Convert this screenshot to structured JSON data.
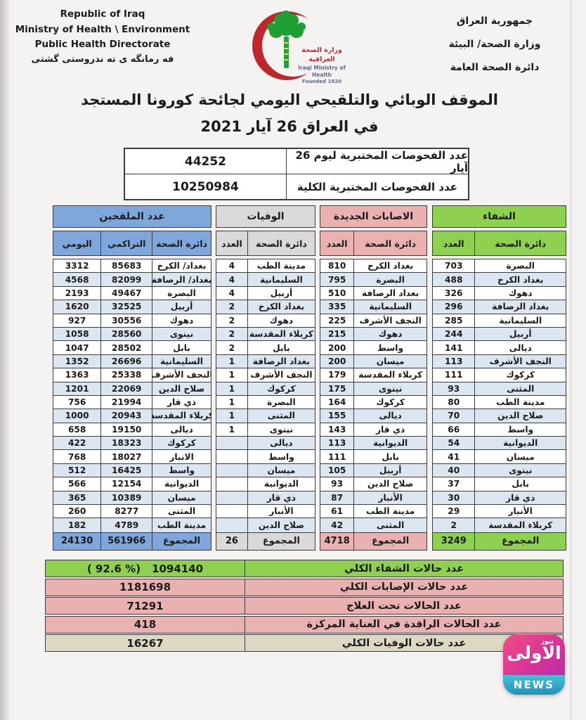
{
  "colors": {
    "vaccinated_header": "#7FA7DC",
    "deaths_header": "#D9D9D9",
    "infections_header": "#E9B1B0",
    "recovery_header": "#8ED050",
    "row_stripe": "#DCE6F1",
    "summary_green": "#8ED050",
    "summary_pink": "#E9B1B0",
    "summary_tan": "#DDD8C3",
    "crescent_red": "#C0272D",
    "tree_green": "#1F9E33",
    "news_magenta": "#D6309B",
    "news_teal": "#2FA8C5"
  },
  "header": {
    "left_lines": [
      "Republic of Iraq",
      "Ministry of Health \\ Environment",
      "Public Health Directorate",
      "فه رمانگه ى ته ندروستى گشتى"
    ],
    "right_lines": [
      "جمهورية العراق",
      "وزارة الصحة/ البيئة",
      "دائرة الصحة العامة"
    ],
    "logo": {
      "arabic": "وزارة الصحة العراقية",
      "english": "Iraqi Ministry of Health",
      "founded": "Founded 1920"
    }
  },
  "title": {
    "line1": "الموقف الوبائي والتلقيحي اليومي لجائحة كورونا المستجد",
    "line2": "في العراق 26  آيار 2021"
  },
  "tests": {
    "rows": [
      {
        "label": "عدد الفحوصات المختبرية  ليوم 26 آيار",
        "value": "44252"
      },
      {
        "label": "عدد الفحوصات المختبرية الكلية",
        "value": "10250984"
      }
    ]
  },
  "region_tables": [
    {
      "id": "vaccinated",
      "title": "عدد الملقحين",
      "header_color": "#7FA7DC",
      "columns": [
        "اليومي",
        "التراكمي",
        "دائرة الصحة"
      ],
      "rows": [
        [
          "3312",
          "85683",
          "بغداد/ الكرخ"
        ],
        [
          "4568",
          "82099",
          "بغداد/ الرصافة"
        ],
        [
          "2193",
          "49467",
          "البصرة"
        ],
        [
          "1620",
          "32525",
          "أربيل"
        ],
        [
          "927",
          "30556",
          "دهوك"
        ],
        [
          "1058",
          "28560",
          "نينوى"
        ],
        [
          "1047",
          "28502",
          "بابل"
        ],
        [
          "1352",
          "26696",
          "السليمانية"
        ],
        [
          "1363",
          "25338",
          "النجف الأشرف"
        ],
        [
          "1201",
          "22069",
          "صلاح الدين"
        ],
        [
          "756",
          "21994",
          "ذي قار"
        ],
        [
          "1000",
          "20943",
          "كربلاء المقدسة"
        ],
        [
          "658",
          "19150",
          "ديالى"
        ],
        [
          "422",
          "18323",
          "كركوك"
        ],
        [
          "768",
          "18027",
          "الانبار"
        ],
        [
          "512",
          "16425",
          "واسط"
        ],
        [
          "566",
          "12154",
          "الديوانية"
        ],
        [
          "365",
          "10389",
          "ميسان"
        ],
        [
          "260",
          "8277",
          "المثنى"
        ],
        [
          "182",
          "4789",
          "مدينة الطب"
        ]
      ],
      "total": [
        "24130",
        "561966",
        "المجموع"
      ]
    },
    {
      "id": "deaths",
      "title": "الوفيات",
      "header_color": "#D9D9D9",
      "columns": [
        "العدد",
        "دائرة الصحة"
      ],
      "rows": [
        [
          "4",
          "مدينة الطب"
        ],
        [
          "4",
          "السليمانية"
        ],
        [
          "4",
          "أربيل"
        ],
        [
          "2",
          "بغداد الكرخ"
        ],
        [
          "2",
          "دهوك"
        ],
        [
          "2",
          "كربلاء المقدسة"
        ],
        [
          "2",
          "بابل"
        ],
        [
          "1",
          "بغداد الرصافة"
        ],
        [
          "1",
          "النجف الأشرف"
        ],
        [
          "1",
          "كركوك"
        ],
        [
          "1",
          "البصرة"
        ],
        [
          "1",
          "المثنى"
        ],
        [
          "1",
          "نينوى"
        ],
        [
          "",
          "ديالى"
        ],
        [
          "",
          "واسط"
        ],
        [
          "",
          "ميسان"
        ],
        [
          "",
          "الديوانية"
        ],
        [
          "",
          "ذي قار"
        ],
        [
          "",
          "الأنبار"
        ],
        [
          "",
          "صلاح الدين"
        ]
      ],
      "total": [
        "26",
        "المجموع"
      ]
    },
    {
      "id": "new-infections",
      "title": "الاصابات الجديدة",
      "header_color": "#E9B1B0",
      "columns": [
        "العدد",
        "دائرة الصحة"
      ],
      "rows": [
        [
          "810",
          "بغداد الكرخ"
        ],
        [
          "795",
          "البصرة"
        ],
        [
          "510",
          "بغداد الرصافة"
        ],
        [
          "335",
          "السليمانية"
        ],
        [
          "225",
          "النجف الأشرف"
        ],
        [
          "215",
          "دهوك"
        ],
        [
          "200",
          "واسط"
        ],
        [
          "200",
          "ميسان"
        ],
        [
          "179",
          "كربلاء المقدسة"
        ],
        [
          "175",
          "نينوى"
        ],
        [
          "164",
          "كركوك"
        ],
        [
          "155",
          "ديالى"
        ],
        [
          "143",
          "ذي قار"
        ],
        [
          "113",
          "الديوانية"
        ],
        [
          "111",
          "بابل"
        ],
        [
          "105",
          "أربيل"
        ],
        [
          "93",
          "صلاح الدين"
        ],
        [
          "87",
          "الأنبار"
        ],
        [
          "61",
          "مدينة الطب"
        ],
        [
          "42",
          "المثنى"
        ]
      ],
      "total": [
        "4718",
        "المجموع"
      ]
    },
    {
      "id": "recovered",
      "title": "الشفاء",
      "header_color": "#8ED050",
      "columns": [
        "العدد",
        "دائرة الصحة"
      ],
      "rows": [
        [
          "703",
          "البصرة"
        ],
        [
          "488",
          "بغداد الكرخ"
        ],
        [
          "326",
          "دهوك"
        ],
        [
          "296",
          "بغداد الرصافة"
        ],
        [
          "285",
          "السليمانية"
        ],
        [
          "244",
          "أربيل"
        ],
        [
          "141",
          "ديالى"
        ],
        [
          "113",
          "النجف الأشرف"
        ],
        [
          "111",
          "كركوك"
        ],
        [
          "93",
          "المثنى"
        ],
        [
          "80",
          "مدينة الطب"
        ],
        [
          "70",
          "صلاح الدين"
        ],
        [
          "66",
          "واسط"
        ],
        [
          "54",
          "الديوانية"
        ],
        [
          "41",
          "ميسان"
        ],
        [
          "40",
          "نينوى"
        ],
        [
          "37",
          "بابل"
        ],
        [
          "30",
          "ذي قار"
        ],
        [
          "29",
          "الأنبار"
        ],
        [
          "2",
          "كربلاء المقدسة"
        ]
      ],
      "total": [
        "3249",
        "المجموع"
      ]
    }
  ],
  "summary": {
    "rows": [
      {
        "label": "عدد حالات الشفاء الكلي",
        "value": "1094140",
        "percent": "( 92.6 %)"
      },
      {
        "label": "عدد حالات الإصابات الكلي",
        "value": "1181698"
      },
      {
        "label": "عدد الحالات تحت العلاج",
        "value": "71291"
      },
      {
        "label": "عدد الحالات الراقدة في العناية المركزة",
        "value": "418"
      },
      {
        "label": "عدد حالات الوفيات الكلي",
        "value": "16267"
      }
    ]
  },
  "news_badge": {
    "arabic_main": "الاولى",
    "arabic_small": "نيوز",
    "english": "NEWS"
  }
}
